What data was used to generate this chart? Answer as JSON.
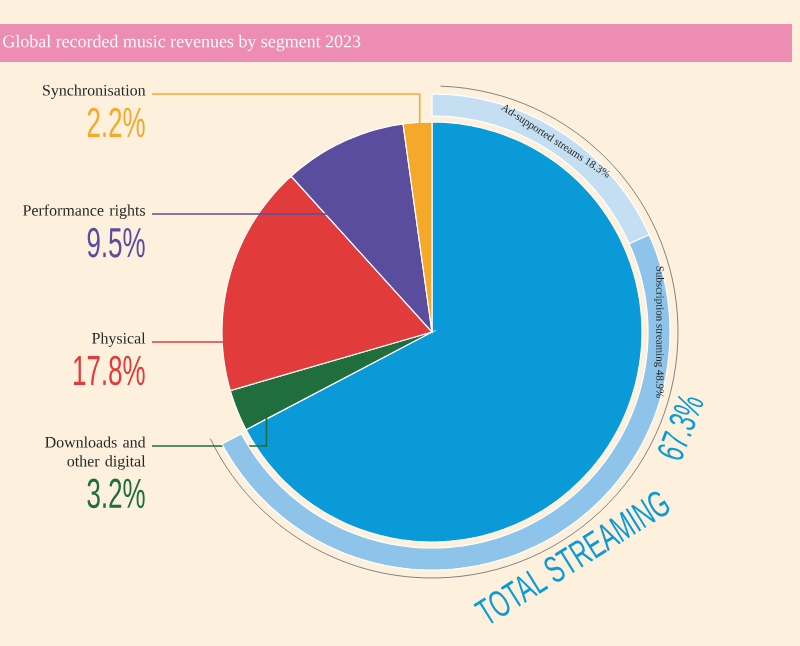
{
  "chart_data": [
    {
      "type": "pie",
      "title": "Global recorded music revenues by segment 2023",
      "categories": [
        "TOTAL STREAMING",
        "Downloads and other digital",
        "Physical",
        "Performance rights",
        "Synchronisation"
      ],
      "values": [
        67.3,
        3.2,
        17.8,
        9.5,
        2.2
      ],
      "colors": [
        "#0b9ad8",
        "#1f6e3c",
        "#e23b3b",
        "#5b4d9e",
        "#f5a82a"
      ],
      "value_labels": [
        "67.3%",
        "3.2%",
        "17.8%",
        "9.5%",
        "2.2%"
      ]
    },
    {
      "type": "donut",
      "categories": [
        "Ad-supported streams",
        "Subscription streaming"
      ],
      "values": [
        18.3,
        48.9
      ],
      "colors": [
        "#c4def2",
        "#8fc4ea"
      ],
      "value_labels": [
        "18.3%",
        "48.9%"
      ]
    }
  ]
}
